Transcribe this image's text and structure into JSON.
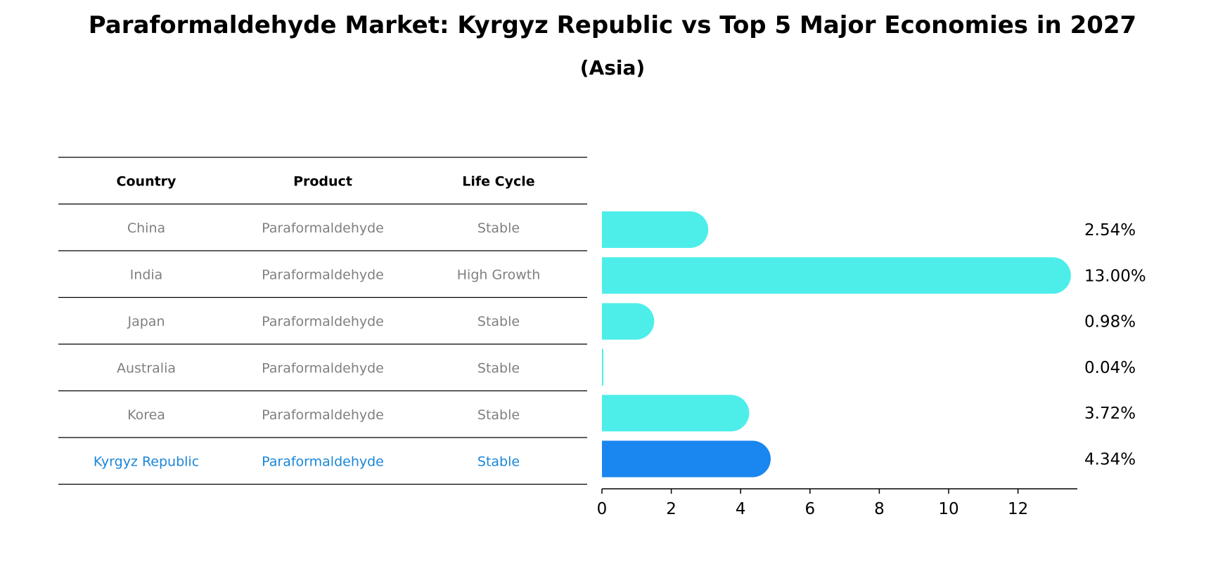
{
  "chart_data": {
    "type": "bar",
    "orientation": "horizontal",
    "title": "Paraformaldehyde Market: Kyrgyz Republic vs Top 5 Major Economies in 2027",
    "subtitle": "(Asia)",
    "table": {
      "headers": [
        "Country",
        "Product",
        "Life Cycle"
      ],
      "rows": [
        {
          "country": "China",
          "product": "Paraformaldehyde",
          "life_cycle": "Stable",
          "highlight": false
        },
        {
          "country": "India",
          "product": "Paraformaldehyde",
          "life_cycle": "High Growth",
          "highlight": false
        },
        {
          "country": "Japan",
          "product": "Paraformaldehyde",
          "life_cycle": "Stable",
          "highlight": false
        },
        {
          "country": "Australia",
          "product": "Paraformaldehyde",
          "life_cycle": "Stable",
          "highlight": false
        },
        {
          "country": "Korea",
          "product": "Paraformaldehyde",
          "life_cycle": "Stable",
          "highlight": false
        },
        {
          "country": "Kyrgyz Republic",
          "product": "Paraformaldehyde",
          "life_cycle": "Stable",
          "highlight": true
        }
      ]
    },
    "categories": [
      "China",
      "India",
      "Japan",
      "Australia",
      "Korea",
      "Kyrgyz Republic"
    ],
    "values": [
      2.54,
      13.0,
      0.98,
      0.04,
      3.72,
      4.34
    ],
    "value_labels": [
      "2.54%",
      "13.00%",
      "0.98%",
      "0.04%",
      "3.72%",
      "4.34%"
    ],
    "xlim": [
      0,
      13.7
    ],
    "xticks": [
      0,
      2,
      4,
      6,
      8,
      10,
      12
    ],
    "xtick_labels": [
      "0",
      "2",
      "4",
      "6",
      "8",
      "10",
      "12"
    ],
    "grid": false,
    "colors": {
      "bar": "#4deeea",
      "highlight_bar": "#1a86f0",
      "row_text": "#808080",
      "highlight_text": "#1a86d8",
      "rule": "#000000"
    }
  }
}
